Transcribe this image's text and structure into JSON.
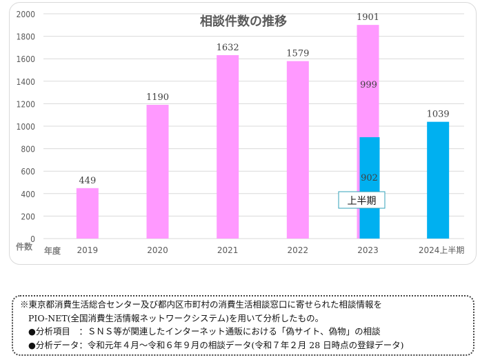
{
  "chart_data": {
    "type": "bar",
    "title": "相談件数の推移",
    "ylabel": "件数",
    "xlabel": "年度",
    "ylim": [
      0,
      2000
    ],
    "yticks": [
      0,
      200,
      400,
      600,
      800,
      1000,
      1200,
      1400,
      1600,
      1800,
      2000
    ],
    "grid": true,
    "categories": [
      "2019",
      "2020",
      "2021",
      "2022",
      "2023",
      "2024上半期"
    ],
    "series": [
      {
        "name": "年度",
        "color": "#ff99ff",
        "values": [
          449,
          1190,
          1632,
          1579,
          1901,
          null
        ]
      },
      {
        "name": "上半期",
        "color": "#00b0f0",
        "values": [
          null,
          null,
          null,
          null,
          902,
          1039
        ]
      }
    ],
    "data_labels": {
      "full_year": [
        "449",
        "1190",
        "1632",
        "1579",
        "1901",
        null
      ],
      "first_half": [
        null,
        null,
        null,
        null,
        "902",
        "1039"
      ],
      "second_half_2023": "999"
    },
    "annotation": "上半期"
  },
  "notes": {
    "line1": "※東京都消費生活総合センター及び都内区市町村の消費生活相談窓口に寄せられた相談情報を",
    "line2": "PIO-NET(全国消費生活情報ネットワークシステム)を用いて分析したもの。",
    "line3": "●分析項目　：ＳＮＳ等が関連したインターネット通販における「偽サイト、偽物」の相談",
    "line4": "●分析データ：令和元年４月～令和６年９月の相談データ(令和７年２月 28 日時点の登録データ)"
  }
}
